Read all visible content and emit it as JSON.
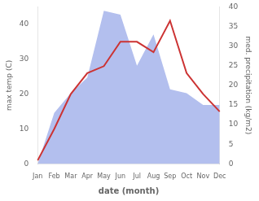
{
  "chart_data": {
    "type": "line",
    "xlabel": "date (month)",
    "ylabel": "max temp (C)",
    "y2label": "med. precipitation (kg/m2)",
    "categories": [
      "Jan",
      "Feb",
      "Mar",
      "Apr",
      "May",
      "Jun",
      "Jul",
      "Aug",
      "Sep",
      "Oct",
      "Nov",
      "Dec"
    ],
    "series": [
      {
        "type": "area",
        "color": "#b3bfee",
        "axis": "y2",
        "values": [
          0,
          13,
          18,
          22,
          39,
          38,
          25,
          33,
          19,
          18,
          15,
          15
        ]
      },
      {
        "type": "line",
        "color": "#cc3333",
        "values": [
          1,
          10,
          20,
          26,
          28,
          35,
          35,
          32,
          41,
          26,
          20,
          15
        ]
      }
    ],
    "ylim": [
      0,
      45
    ],
    "yticks": [
      0,
      10,
      20,
      30,
      40
    ],
    "y2lim": [
      0,
      40
    ],
    "y2ticks": [
      0,
      5,
      10,
      15,
      20,
      25,
      30,
      35,
      40
    ],
    "grid": false
  }
}
